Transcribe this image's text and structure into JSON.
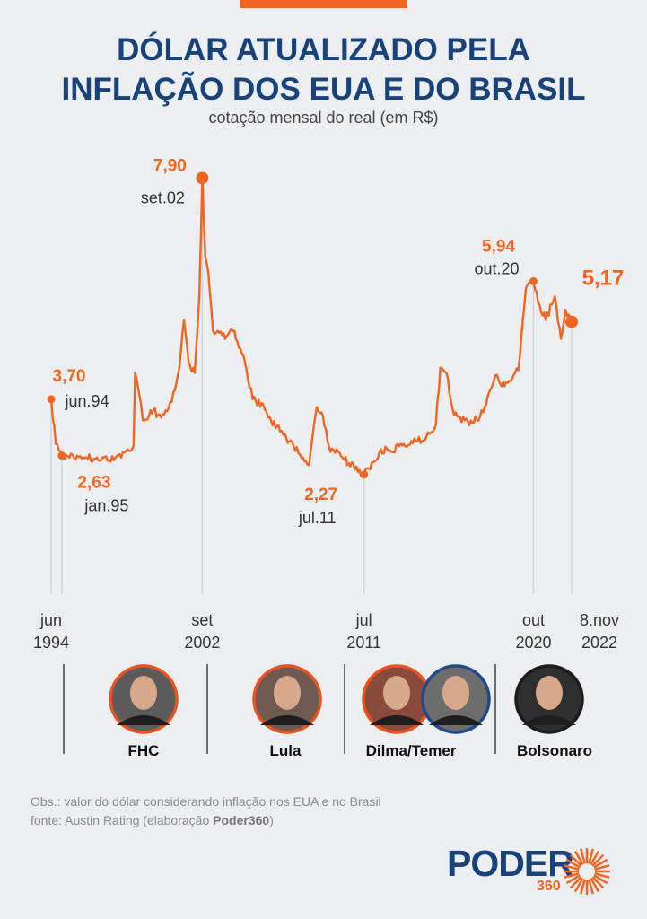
{
  "header": {
    "title_line1": "DÓLAR ATUALIZADO PELA",
    "title_line2": "INFLAÇÃO DOS EUA E DO BRASIL",
    "subtitle": "cotação mensal do real (em R$)"
  },
  "colors": {
    "line": "#f26522",
    "title": "#18427a",
    "axis": "#c9d6de"
  },
  "chart_data": {
    "type": "line",
    "title": "DÓLAR ATUALIZADO PELA INFLAÇÃO DOS EUA E DO BRASIL",
    "subtitle": "cotação mensal do real (em R$)",
    "xlabel": "",
    "ylabel": "",
    "grid": false,
    "x_range": [
      "1994-06",
      "2022-11"
    ],
    "series": [
      {
        "values": [
          [
            "1994-06",
            3.7
          ],
          [
            "1994-09",
            2.85
          ],
          [
            "1995-01",
            2.63
          ],
          [
            "1996-01",
            2.62
          ],
          [
            "1997-01",
            2.54
          ],
          [
            "1998-01",
            2.62
          ],
          [
            "1998-09",
            2.72
          ],
          [
            "1998-12",
            2.82
          ],
          [
            "1999-01",
            4.2
          ],
          [
            "1999-03",
            3.9
          ],
          [
            "1999-06",
            3.3
          ],
          [
            "2000-01",
            3.5
          ],
          [
            "2000-06",
            3.35
          ],
          [
            "2001-01",
            3.65
          ],
          [
            "2001-06",
            4.3
          ],
          [
            "2001-09",
            5.2
          ],
          [
            "2001-12",
            4.4
          ],
          [
            "2002-04",
            4.2
          ],
          [
            "2002-07",
            5.6
          ],
          [
            "2002-09",
            7.9
          ],
          [
            "2002-11",
            6.4
          ],
          [
            "2003-01",
            6.1
          ],
          [
            "2003-04",
            5.0
          ],
          [
            "2004-01",
            4.9
          ],
          [
            "2004-06",
            5.0
          ],
          [
            "2005-01",
            4.4
          ],
          [
            "2005-06",
            3.7
          ],
          [
            "2006-01",
            3.6
          ],
          [
            "2006-06",
            3.3
          ],
          [
            "2007-01",
            3.1
          ],
          [
            "2007-06",
            2.9
          ],
          [
            "2008-01",
            2.65
          ],
          [
            "2008-07",
            2.45
          ],
          [
            "2008-12",
            3.55
          ],
          [
            "2009-03",
            3.45
          ],
          [
            "2009-09",
            2.7
          ],
          [
            "2010-01",
            2.75
          ],
          [
            "2010-06",
            2.55
          ],
          [
            "2011-07",
            2.27
          ],
          [
            "2012-01",
            2.5
          ],
          [
            "2012-06",
            2.75
          ],
          [
            "2013-01",
            2.7
          ],
          [
            "2013-09",
            2.85
          ],
          [
            "2014-06",
            2.9
          ],
          [
            "2014-12",
            3.0
          ],
          [
            "2015-06",
            3.2
          ],
          [
            "2015-09",
            4.3
          ],
          [
            "2016-01",
            4.2
          ],
          [
            "2016-06",
            3.4
          ],
          [
            "2017-01",
            3.3
          ],
          [
            "2017-06",
            3.25
          ],
          [
            "2018-01",
            3.45
          ],
          [
            "2018-09",
            4.15
          ],
          [
            "2019-01",
            3.95
          ],
          [
            "2019-06",
            4.05
          ],
          [
            "2019-12",
            4.25
          ],
          [
            "2020-05",
            5.8
          ],
          [
            "2020-10",
            5.94
          ],
          [
            "2021-01",
            5.55
          ],
          [
            "2021-06",
            5.2
          ],
          [
            "2021-12",
            5.65
          ],
          [
            "2022-04",
            4.85
          ],
          [
            "2022-07",
            5.4
          ],
          [
            "2022-11",
            5.17
          ]
        ]
      }
    ],
    "ylim": [
      0,
      8.4
    ],
    "highlights": [
      {
        "x": "1994-06",
        "value_label": "3,70",
        "date_label": "jun.94",
        "axis_label_top": "jun",
        "axis_label_bottom": "1994"
      },
      {
        "x": "1995-01",
        "value_label": "2,63",
        "date_label": "jan.95"
      },
      {
        "x": "2002-09",
        "value_label": "7,90",
        "date_label": "set.02",
        "axis_label_top": "set",
        "axis_label_bottom": "2002"
      },
      {
        "x": "2011-07",
        "value_label": "2,27",
        "date_label": "jul.11",
        "axis_label_top": "jul",
        "axis_label_bottom": "2011"
      },
      {
        "x": "2020-10",
        "value_label": "5,94",
        "date_label": "out.20",
        "axis_label_top": "out",
        "axis_label_bottom": "2020"
      },
      {
        "x": "2022-11",
        "value_label": "5,17",
        "date_label": "",
        "axis_label_top": "8.nov",
        "axis_label_bottom": "2022"
      }
    ]
  },
  "periods": [
    {
      "name": "FHC",
      "portraits": 1
    },
    {
      "name": "Lula",
      "portraits": 1
    },
    {
      "name": "Dilma/Temer",
      "portraits": 2
    },
    {
      "name": "Bolsonaro",
      "portraits": 1
    }
  ],
  "footer": {
    "obs": "Obs.: valor do dólar considerando inflação nos EUA e no Brasil",
    "source_prefix": "fonte: Austin Rating (elaboração ",
    "source_brand": "Poder360",
    "source_suffix": ")"
  },
  "logo": {
    "main": "PODER",
    "sub": "360"
  }
}
